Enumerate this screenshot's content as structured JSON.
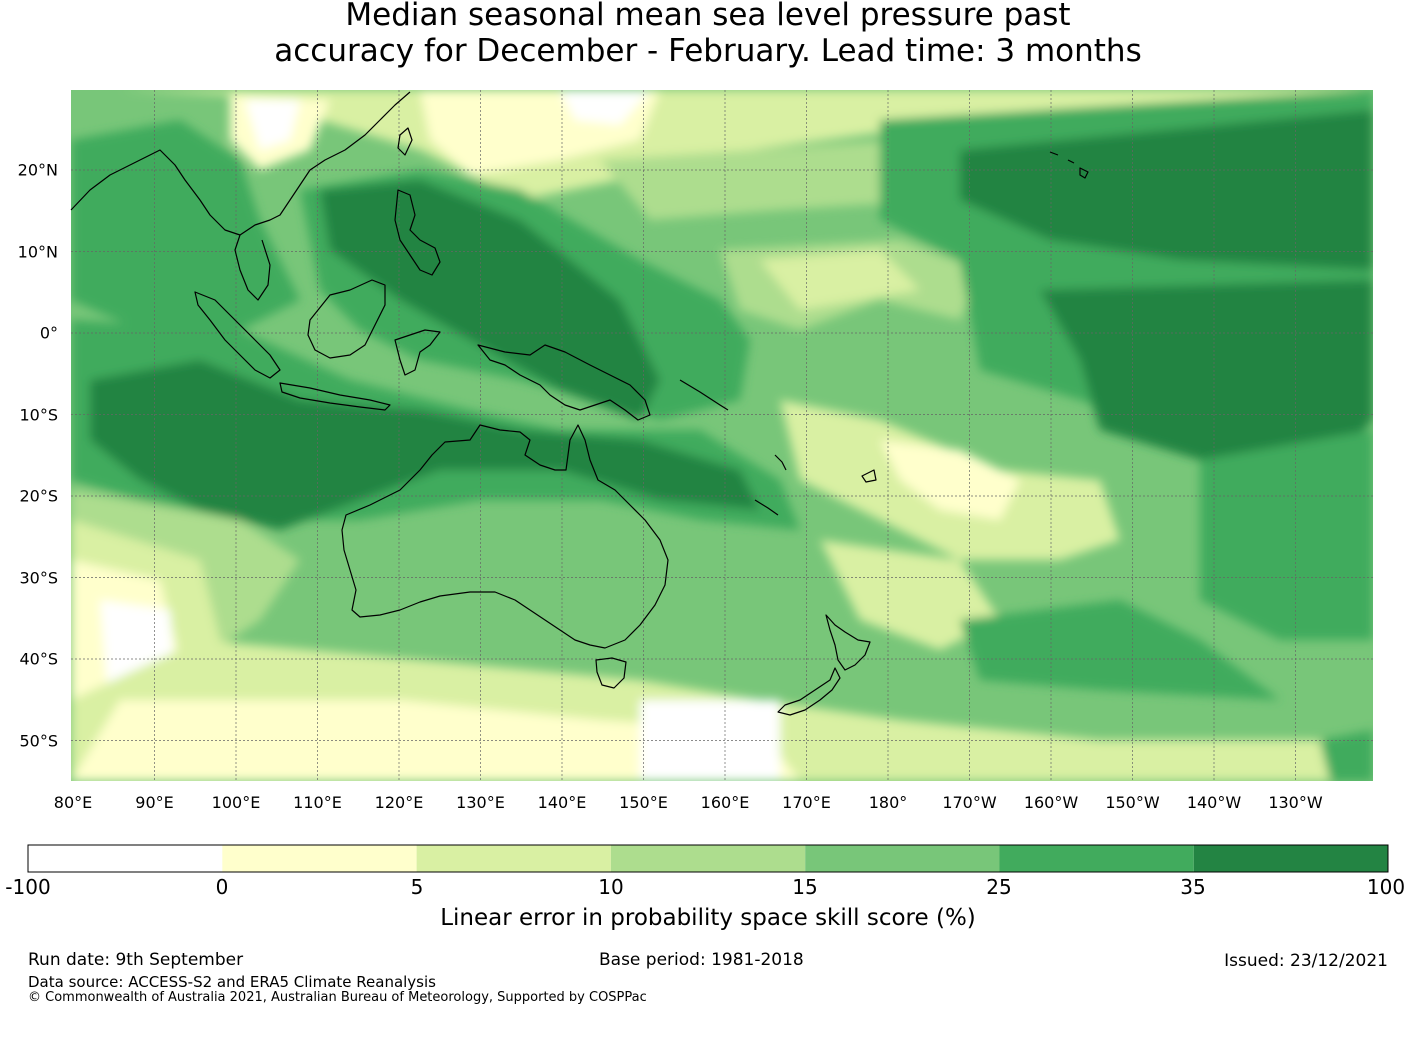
{
  "title": {
    "line1": "Median seasonal mean sea level pressure past",
    "line2": "accuracy for December - February. Lead time: 3 months"
  },
  "map": {
    "lat_labels": [
      "20°N",
      "10°N",
      "0°",
      "10°S",
      "20°S",
      "30°S",
      "40°S",
      "50°S"
    ],
    "lon_labels": [
      "80°E",
      "90°E",
      "100°E",
      "110°E",
      "120°E",
      "130°E",
      "140°E",
      "150°E",
      "160°E",
      "170°E",
      "180°",
      "170°W",
      "160°W",
      "150°W",
      "140°W",
      "130°W"
    ]
  },
  "colorbar": {
    "ticks": [
      "-100",
      "0",
      "5",
      "10",
      "15",
      "25",
      "35",
      "100"
    ],
    "colors": [
      "#ffffff",
      "#ffffcc",
      "#d9f0a3",
      "#addd8e",
      "#78c679",
      "#41ab5d",
      "#238443"
    ],
    "label": "Linear error in probability space skill score (%)"
  },
  "footer": {
    "run_date": "Run date: 9th September",
    "base_period": "Base period: 1981-2018",
    "issued": "Issued: 23/12/2021",
    "data_source": "Data source: ACCESS-S2 and ERA5 Climate Reanalysis",
    "copyright": "© Commonwealth of Australia 2021, Australian Bureau of Meteorology, Supported by COSPPac"
  }
}
